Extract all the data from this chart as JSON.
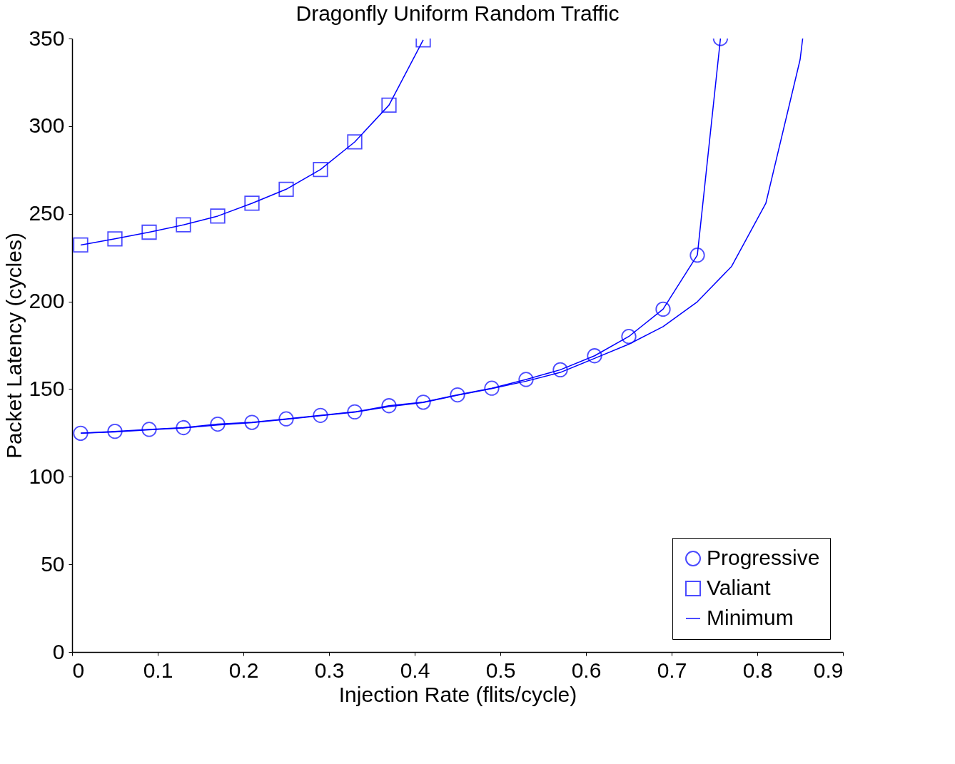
{
  "chart_data": {
    "type": "line",
    "title": "Dragonfly Uniform Random Traffic",
    "xlabel": "Injection Rate (flits/cycle)",
    "ylabel": "Packet Latency (cycles)",
    "xlim": [
      0,
      0.9
    ],
    "xticks": [
      0,
      0.1,
      0.2,
      0.3,
      0.4,
      0.5,
      0.6,
      0.7,
      0.8,
      0.9
    ],
    "ylim": [
      0,
      350
    ],
    "yticks": [
      0,
      50,
      100,
      150,
      200,
      250,
      300,
      350
    ],
    "grid": false,
    "legend": "bottom right",
    "series": [
      {
        "name": "Progressive",
        "color": "#0000ff",
        "marker": "circle",
        "x": [
          0.01,
          0.05,
          0.09,
          0.13,
          0.17,
          0.21,
          0.25,
          0.29,
          0.33,
          0.37,
          0.41,
          0.45,
          0.49,
          0.53,
          0.57,
          0.61,
          0.65,
          0.69,
          0.73,
          0.757
        ],
        "values": [
          124.8,
          125.9,
          127,
          128,
          130,
          131,
          133,
          135,
          137,
          140.5,
          142.5,
          146.7,
          150.5,
          155.5,
          161,
          169,
          180,
          195.6,
          226.4,
          350
        ]
      },
      {
        "name": "Valiant",
        "color": "#0000ff",
        "marker": "square",
        "x": [
          0.01,
          0.05,
          0.09,
          0.13,
          0.17,
          0.21,
          0.25,
          0.29,
          0.33,
          0.37,
          0.41
        ],
        "values": [
          232.2,
          235.7,
          239.5,
          243.7,
          248.7,
          256,
          264,
          275.3,
          291,
          312,
          349.2
        ]
      },
      {
        "name": "Minimum",
        "color": "#0000ff",
        "marker": "none",
        "x": [
          0.01,
          0.05,
          0.09,
          0.13,
          0.17,
          0.21,
          0.25,
          0.29,
          0.33,
          0.37,
          0.41,
          0.45,
          0.49,
          0.53,
          0.57,
          0.61,
          0.65,
          0.69,
          0.73,
          0.77,
          0.81,
          0.85,
          0.853
        ],
        "values": [
          124.8,
          125.6,
          126.8,
          127.8,
          129.5,
          130.8,
          132.8,
          134.8,
          136.8,
          140,
          142.3,
          146.5,
          150.3,
          154.5,
          159.5,
          167.5,
          175.6,
          185.6,
          199.8,
          220,
          256,
          338,
          350
        ]
      }
    ]
  }
}
